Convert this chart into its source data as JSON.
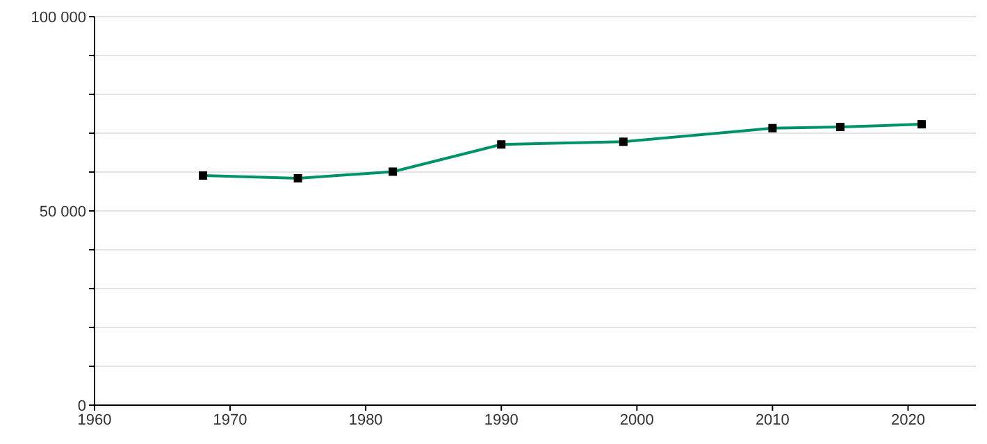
{
  "chart_data": {
    "type": "line",
    "x": [
      1968,
      1975,
      1982,
      1990,
      1999,
      2010,
      2015,
      2021
    ],
    "series": [
      {
        "color": "#00936b",
        "values": [
          59100,
          58400,
          60100,
          67100,
          67800,
          71300,
          71600,
          72300
        ]
      }
    ],
    "xlim": [
      1960,
      2025
    ],
    "xticks": [
      1960,
      1970,
      1980,
      1990,
      2000,
      2010,
      2020
    ],
    "ylim": [
      0,
      100000
    ],
    "yticks": [
      {
        "value": 0,
        "label": "0"
      },
      {
        "value": 10000,
        "label": null
      },
      {
        "value": 20000,
        "label": null
      },
      {
        "value": 30000,
        "label": null
      },
      {
        "value": 40000,
        "label": null
      },
      {
        "value": 50000,
        "label": "50 000"
      },
      {
        "value": 60000,
        "label": null
      },
      {
        "value": 70000,
        "label": null
      },
      {
        "value": 80000,
        "label": null
      },
      {
        "value": 90000,
        "label": null
      },
      {
        "value": 100000,
        "label": "100 000"
      }
    ],
    "grid": "y",
    "marker": "square",
    "line_style": "solid"
  }
}
